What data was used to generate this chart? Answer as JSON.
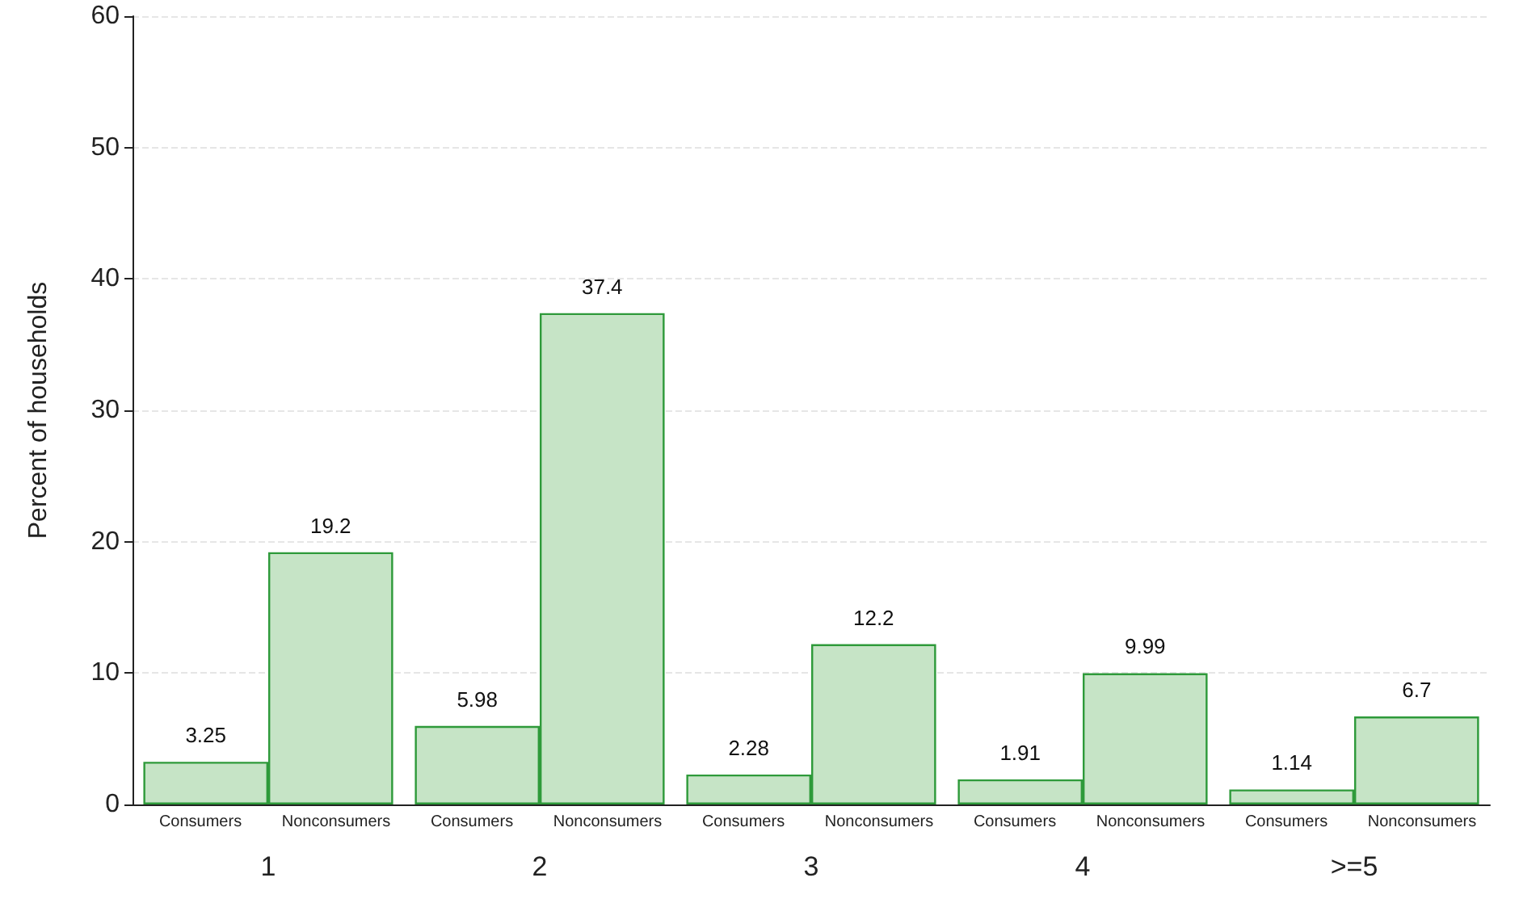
{
  "chart_data": {
    "type": "bar",
    "ylabel": "Percent of households",
    "categories": [
      "1",
      "2",
      "3",
      "4",
      ">=5"
    ],
    "series": [
      {
        "name": "Consumers",
        "color": "#c6e4c6",
        "values": [
          3.25,
          5.98,
          2.28,
          1.91,
          1.14
        ]
      },
      {
        "name": "Nonconsumers",
        "color": "#c6e4c6",
        "values": [
          19.2,
          37.4,
          12.2,
          9.99,
          6.7
        ]
      }
    ],
    "ylim": [
      0,
      60
    ],
    "yticks": [
      0,
      10,
      20,
      30,
      40,
      50,
      60
    ],
    "grid": "y",
    "data_labels": true,
    "legend": false
  }
}
